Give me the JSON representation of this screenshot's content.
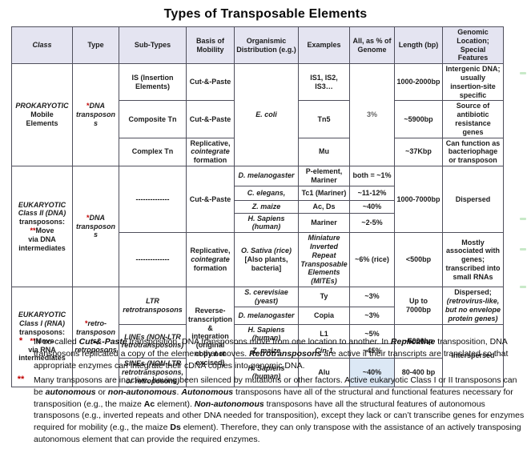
{
  "title": "Types of Transposable Elements",
  "colors": {
    "header_bg": "#e4e4f1",
    "highlight_bg": "#dce8f5",
    "asterisk_red": "#c00000",
    "border": "#4f4f5c"
  },
  "table": {
    "headers": {
      "class": "Class",
      "type": "Type",
      "sub_types": "Sub-Types",
      "basis": "Basis of Mobility",
      "organism": "Organismic Distribution (e.g.)",
      "examples": "Examples",
      "pct": "All, as % of Genome",
      "length": "Length (bp)",
      "location": "Genomic Location; Special Features"
    },
    "prok": {
      "class_label": [
        {
          "t": "PROKARYOTIC",
          "c": "bi"
        },
        {
          "br": true
        },
        {
          "t": "Mobile",
          "c": "b"
        },
        {
          "br": true
        },
        {
          "t": "Elements",
          "c": "b"
        }
      ],
      "type_label": [
        {
          "t": "*",
          "c": "red b"
        },
        {
          "t": "DNA",
          "c": "bi"
        },
        {
          "br": true
        },
        {
          "t": "transposons",
          "c": "bi"
        }
      ],
      "org": "E. coli",
      "pct": "3%",
      "basis_complex": [
        {
          "t": "Replicative,",
          "c": "b"
        },
        {
          "br": true
        },
        {
          "t": "cointegrate",
          "c": "bi"
        },
        {
          "br": true
        },
        {
          "t": "formation",
          "c": "b"
        }
      ],
      "rows": [
        {
          "sub": "IS (Insertion Elements)",
          "basis": "Cut-&-Paste",
          "ex": "IS1, IS2, IS3…",
          "len": "1000-2000bp",
          "loc": "Intergenic DNA; usually insertion-site specific"
        },
        {
          "sub": "Composite Tn",
          "basis": "Cut-&-Paste",
          "ex": "Tn5",
          "len": "~5900bp",
          "loc": "Source of antibiotic resistance genes"
        },
        {
          "sub": "Complex Tn",
          "ex": "Mu",
          "len": "~37Kbp",
          "loc": "Can function as bacteriophage or transposon"
        }
      ]
    },
    "class2": {
      "class_label": [
        {
          "t": "EUKARYOTIC",
          "c": "bi"
        },
        {
          "br": true
        },
        {
          "t": "Class II  (DNA)",
          "c": "bi"
        },
        {
          "br": true
        },
        {
          "t": "transposons:",
          "c": "b"
        },
        {
          "br": true
        },
        {
          "t": "**",
          "c": "red b"
        },
        {
          "t": "Move",
          "c": "b"
        },
        {
          "br": true
        },
        {
          "t": "via DNA",
          "c": "b"
        },
        {
          "br": true
        },
        {
          "t": "intermediates",
          "c": "b"
        }
      ],
      "type_label": [
        {
          "t": "*",
          "c": "red b"
        },
        {
          "t": "DNA",
          "c": "bi"
        },
        {
          "br": true
        },
        {
          "t": "transposons",
          "c": "bi"
        }
      ],
      "dashes1": "--------------",
      "dashes2": "--------------",
      "basis_cut": "Cut-&-Paste",
      "basis_repl": [
        {
          "t": "Replicative,",
          "c": "b"
        },
        {
          "br": true
        },
        {
          "t": "cointegrate",
          "c": "bi"
        },
        {
          "br": true
        },
        {
          "t": "formation",
          "c": "b"
        }
      ],
      "rows": [
        {
          "org": "D. melanogaster",
          "ex": "P-element, Mariner",
          "pct": "both = ~1%"
        },
        {
          "org": "C. elegans,",
          "ex": "Tc1 (Mariner)",
          "pct": "~11-12%"
        },
        {
          "org": "Z. maize",
          "ex": "Ac, Ds",
          "pct": "~40%"
        },
        {
          "org": "H. Sapiens (human)",
          "ex": "Mariner",
          "pct": "~2-5%"
        }
      ],
      "len_main": "1000-7000bp",
      "loc_main": "Dispersed",
      "mites": {
        "org": [
          {
            "t": "O. Sativa (rice)",
            "c": "bi"
          },
          {
            "br": true
          },
          {
            "t": "[Also plants,",
            "c": "b"
          },
          {
            "br": true
          },
          {
            "t": "bacteria]",
            "c": "b"
          }
        ],
        "ex": "Miniature Inverted Repeat Transposable Elements (MITEs)",
        "pct": "~6% (rice)",
        "len": "<500bp",
        "loc": "Mostly associated with genes; transcribed into small RNAs"
      }
    },
    "class1": {
      "class_label": [
        {
          "t": "EUKARYOTIC",
          "c": "bi"
        },
        {
          "br": true
        },
        {
          "t": "Class I (RNA)",
          "c": "bi"
        },
        {
          "br": true
        },
        {
          "t": "transposons:",
          "c": "b"
        },
        {
          "br": true
        },
        {
          "t": "**",
          "c": "red b"
        },
        {
          "t": "Move",
          "c": "b"
        },
        {
          "br": true
        },
        {
          "t": "via RNA",
          "c": "b"
        },
        {
          "br": true
        },
        {
          "t": "intermediates",
          "c": "b"
        }
      ],
      "type_label": [
        {
          "t": "*",
          "c": "red b"
        },
        {
          "t": "retro-",
          "c": "bi"
        },
        {
          "br": true
        },
        {
          "t": "transposons,",
          "c": "bi"
        },
        {
          "br": true
        },
        {
          "t": "retroposons",
          "c": "bi"
        }
      ],
      "sub_ltr": "LTR retrotransposons",
      "sub_lines": "LINEs (NON-LTR retrotransposons)",
      "sub_sines": "SINEs (NON-LTR retrotransposons, or retroposons)",
      "basis": "Reverse-transcription & integration (original copy not excised)",
      "rows": {
        "ty": {
          "org": "S. cerevisiae (yeast)",
          "ex": "Ty",
          "pct": "~3%"
        },
        "copia": {
          "org": "D. melanogaster",
          "ex": "Copia",
          "pct": "~3%"
        },
        "l1": {
          "org": "H. Sapiens (human)",
          "ex": "L1",
          "pct": "~5%"
        },
        "cin": {
          "org": "Z. maize",
          "ex": "Cin-1",
          "pct": "~45%"
        },
        "alu": {
          "org": "H. Sapiens (human)",
          "ex": "Alu",
          "pct": "~40%"
        }
      },
      "len_ltr": "Up to 7000bp",
      "len_lines": "~6000bp",
      "len_alu": "80-400 bp",
      "loc_ltr": [
        {
          "t": "Dispersed;",
          "c": "b"
        },
        {
          "br": true
        },
        {
          "t": "(retrovirus-like,",
          "c": "bi"
        },
        {
          "br": true
        },
        {
          "t": "but no envelope",
          "c": "bi"
        },
        {
          "br": true
        },
        {
          "t": "protein genes)",
          "c": "bi"
        }
      ],
      "loc_lines": "Interspersed"
    }
  },
  "footnotes": [
    {
      "marker": "*",
      "segments": [
        {
          "t": "In so-called "
        },
        {
          "t": "Cut-&-Paste",
          "c": "bi"
        },
        {
          "t": " transposition, DNA transposons move from one location to another. In "
        },
        {
          "t": "Replicative",
          "c": "bi"
        },
        {
          "t": " transposition, DNA transposons replicated a copy of the element that moves.  "
        },
        {
          "t": "Retrotransposons",
          "c": "bi"
        },
        {
          "t": " are active if their transcripts are translated so that appropriate enzymes can integrate their cDNA copies into genomic DNA."
        }
      ]
    },
    {
      "marker": "**",
      "segments": [
        {
          "t": "Many transposons are inactive, having been silenced by mutations or other factors.  Active eukaryotic Class I or II transposons can be "
        },
        {
          "t": "autonomous",
          "c": "bi"
        },
        {
          "t": " or "
        },
        {
          "t": "non-autonomous",
          "c": "bi"
        },
        {
          "t": ". "
        },
        {
          "t": "Autonomous",
          "c": "bi"
        },
        {
          "t": " transposons have all of the structural and functional features necessary for transposition (e.g., the maize "
        },
        {
          "t": "Ac",
          "c": "b"
        },
        {
          "t": " element).  "
        },
        {
          "t": "Non-autonomous",
          "c": "bi"
        },
        {
          "t": " transposons have all the structural features of autonomous transposons (e.g., inverted repeats and other DNA needed for transposition), except they lack or can’t transcribe genes for enzymes required for mobility (e.g., the maize "
        },
        {
          "t": "Ds",
          "c": "b"
        },
        {
          "t": " element).   Therefore, they can only transpose with the assistance of an actively transposing autonomous element that can provide the required enzymes."
        }
      ]
    }
  ]
}
